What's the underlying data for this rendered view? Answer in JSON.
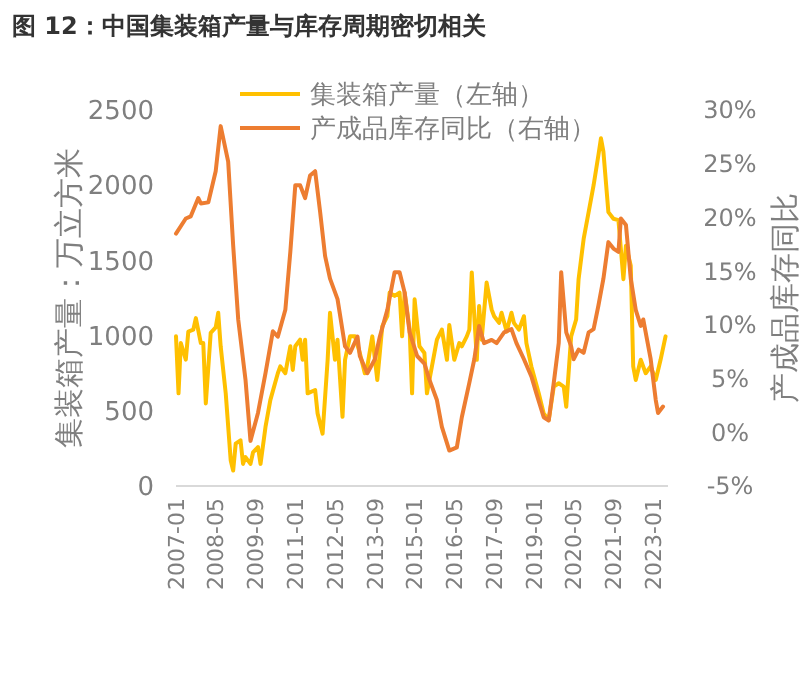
{
  "chart_data": {
    "type": "line",
    "title": "图 12：中国集装箱产量与库存周期密切相关",
    "ylabel": "集装箱产量：万立方米",
    "y2label": "产成品库存同比",
    "legend": "top",
    "grid": false,
    "marker": "none",
    "line_style": "solid",
    "xlim": [
      "2007-01",
      "2023-07"
    ],
    "xticks": [
      "2007-01",
      "2008-05",
      "2009-09",
      "2011-01",
      "2012-05",
      "2013-09",
      "2015-01",
      "2016-05",
      "2017-09",
      "2019-01",
      "2020-05",
      "2021-09",
      "2023-01"
    ],
    "ylim": [
      0,
      2500
    ],
    "yticks": [
      0,
      500,
      1000,
      1500,
      2000,
      2500
    ],
    "y2lim": [
      -5,
      30
    ],
    "y2ticks": [
      {
        "value": -5,
        "label": "-5%"
      },
      {
        "value": 0,
        "label": "0%"
      },
      {
        "value": 5,
        "label": "5%"
      },
      {
        "value": 10,
        "label": "10%"
      },
      {
        "value": 15,
        "label": "15%"
      },
      {
        "value": 20,
        "label": "20%"
      },
      {
        "value": 25,
        "label": "25%"
      },
      {
        "value": 30,
        "label": "30%"
      }
    ],
    "series": [
      {
        "name": "集装箱产量（左轴）",
        "color": "#ffc000",
        "x": [
          "2007-01",
          "2007-02",
          "2007-03",
          "2007-05",
          "2007-06",
          "2007-08",
          "2007-09",
          "2007-11",
          "2007-12",
          "2008-01",
          "2008-03",
          "2008-05",
          "2008-06",
          "2008-07",
          "2008-09",
          "2008-11",
          "2008-12",
          "2009-01",
          "2009-03",
          "2009-04",
          "2009-05",
          "2009-07",
          "2009-08",
          "2009-10",
          "2009-11",
          "2010-01",
          "2010-03",
          "2010-06",
          "2010-07",
          "2010-09",
          "2010-11",
          "2010-12",
          "2011-01",
          "2011-03",
          "2011-04",
          "2011-05",
          "2011-06",
          "2011-09",
          "2011-10",
          "2011-12",
          "2012-02",
          "2012-03",
          "2012-05",
          "2012-06",
          "2012-08",
          "2012-09",
          "2012-11",
          "2013-01",
          "2013-03",
          "2013-05",
          "2013-06",
          "2013-08",
          "2013-10",
          "2013-12",
          "2014-02",
          "2014-03",
          "2014-05",
          "2014-07",
          "2014-08",
          "2014-09",
          "2014-11",
          "2014-12",
          "2015-01",
          "2015-03",
          "2015-05",
          "2015-06",
          "2015-08",
          "2015-10",
          "2015-12",
          "2016-02",
          "2016-03",
          "2016-05",
          "2016-07",
          "2016-08",
          "2016-10",
          "2016-11",
          "2016-12",
          "2017-02",
          "2017-03",
          "2017-04",
          "2017-06",
          "2017-08",
          "2017-09",
          "2017-11",
          "2017-12",
          "2018-02",
          "2018-04",
          "2018-05",
          "2018-07",
          "2018-09",
          "2018-10",
          "2018-12",
          "2019-03",
          "2019-05",
          "2019-07",
          "2019-09",
          "2019-11",
          "2020-01",
          "2020-02",
          "2020-04",
          "2020-06",
          "2020-07",
          "2020-09",
          "2020-11",
          "2021-01",
          "2021-03",
          "2021-04",
          "2021-05",
          "2021-07",
          "2021-09",
          "2021-11",
          "2022-01",
          "2022-02",
          "2022-04",
          "2022-05",
          "2022-06",
          "2022-08",
          "2022-10",
          "2022-12",
          "2023-02",
          "2023-04",
          "2023-06"
        ],
        "values": [
          995,
          616,
          950,
          840,
          1027,
          1040,
          1116,
          950,
          950,
          549,
          1018,
          1054,
          1152,
          929,
          616,
          170,
          103,
          281,
          304,
          147,
          192,
          147,
          223,
          259,
          147,
          393,
          571,
          750,
          795,
          750,
          929,
          772,
          929,
          973,
          839,
          973,
          616,
          638,
          482,
          348,
          839,
          1152,
          839,
          973,
          460,
          839,
          995,
          995,
          884,
          750,
          795,
          995,
          705,
          1062,
          1129,
          1286,
          1264,
          1286,
          995,
          1286,
          1040,
          616,
          1241,
          929,
          884,
          616,
          795,
          973,
          1040,
          839,
          1071,
          839,
          950,
          929,
          995,
          1040,
          1420,
          839,
          1196,
          973,
          1353,
          1174,
          1129,
          1085,
          1152,
          1027,
          1152,
          1085,
          1040,
          1129,
          950,
          795,
          616,
          482,
          438,
          661,
          683,
          661,
          527,
          995,
          1107,
          1375,
          1643,
          1821,
          2000,
          2201,
          2312,
          2223,
          1821,
          1777,
          1768,
          1375,
          1598,
          1464,
          795,
          705,
          839,
          750,
          795,
          705,
          839,
          995
        ]
      },
      {
        "name": "产成品库存同比（右轴）",
        "color": "#ed7d31",
        "axis": "y2",
        "x": [
          "2007-01",
          "2007-05",
          "2007-07",
          "2007-10",
          "2007-11",
          "2008-02",
          "2008-05",
          "2008-07",
          "2008-10",
          "2008-12",
          "2009-02",
          "2009-05",
          "2009-07",
          "2009-10",
          "2010-01",
          "2010-04",
          "2010-06",
          "2010-09",
          "2010-11",
          "2011-01",
          "2011-03",
          "2011-05",
          "2011-07",
          "2011-09",
          "2011-11",
          "2012-01",
          "2012-03",
          "2012-06",
          "2012-09",
          "2012-11",
          "2013-02",
          "2013-03",
          "2013-06",
          "2013-09",
          "2013-11",
          "2014-02",
          "2014-05",
          "2014-07",
          "2014-09",
          "2014-11",
          "2015-02",
          "2015-05",
          "2015-07",
          "2015-10",
          "2015-12",
          "2016-03",
          "2016-06",
          "2016-08",
          "2016-11",
          "2017-01",
          "2017-03",
          "2017-05",
          "2017-08",
          "2017-10",
          "2018-01",
          "2018-04",
          "2018-06",
          "2018-09",
          "2018-12",
          "2019-02",
          "2019-05",
          "2019-07",
          "2019-09",
          "2019-11",
          "2019-12",
          "2020-02",
          "2020-04",
          "2020-05",
          "2020-07",
          "2020-09",
          "2020-11",
          "2021-01",
          "2021-03",
          "2021-05",
          "2021-07",
          "2021-09",
          "2021-11",
          "2021-12",
          "2022-02",
          "2022-04",
          "2022-06",
          "2022-08",
          "2022-09",
          "2022-12",
          "2023-02",
          "2023-03",
          "2023-05"
        ],
        "values": [
          18.5,
          19.9,
          20.1,
          21.8,
          21.3,
          21.4,
          24.3,
          28.5,
          25.2,
          17.4,
          10.5,
          4.9,
          -0.8,
          1.8,
          5.5,
          9.4,
          8.9,
          11.4,
          16.8,
          23.0,
          23.0,
          21.8,
          23.9,
          24.3,
          20.5,
          16.4,
          14.3,
          12.4,
          8.0,
          7.4,
          8.9,
          7.1,
          5.5,
          6.8,
          8.9,
          11.4,
          14.9,
          14.9,
          13.0,
          9.3,
          7.1,
          6.4,
          4.9,
          3.0,
          0.5,
          -1.7,
          -1.4,
          1.4,
          4.6,
          6.8,
          9.9,
          8.3,
          8.6,
          8.3,
          9.3,
          9.6,
          8.3,
          6.8,
          5.2,
          3.6,
          1.4,
          1.1,
          4.6,
          8.3,
          14.9,
          9.3,
          8.0,
          6.8,
          7.7,
          7.4,
          9.3,
          9.6,
          11.8,
          14.3,
          17.7,
          17.1,
          16.8,
          19.9,
          19.3,
          14.3,
          11.4,
          9.9,
          10.5,
          6.8,
          3.0,
          1.8,
          2.4
        ]
      }
    ]
  }
}
